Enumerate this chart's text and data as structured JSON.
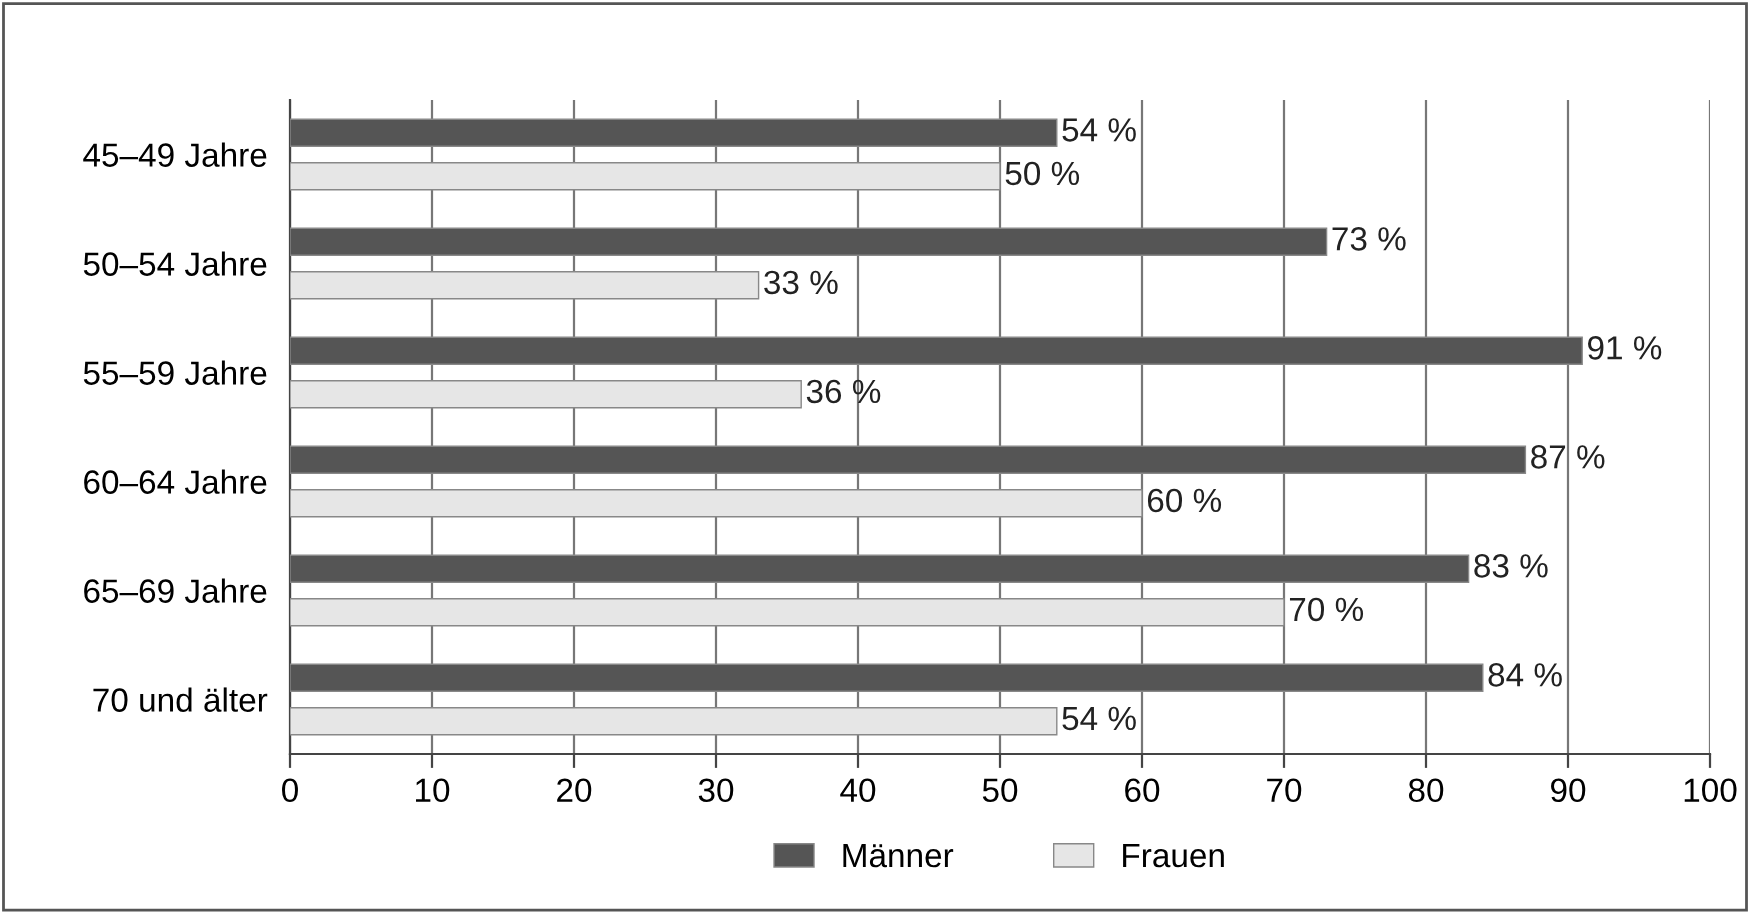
{
  "chart_data": {
    "type": "bar",
    "orientation": "horizontal",
    "categories": [
      "45–49 Jahre",
      "50–54 Jahre",
      "55–59 Jahre",
      "60–64 Jahre",
      "65–69 Jahre",
      "70 und älter"
    ],
    "series": [
      {
        "name": "Männer",
        "color": "#555555",
        "values": [
          54,
          73,
          91,
          87,
          83,
          84
        ],
        "value_labels": [
          "54 %",
          "73 %",
          "91 %",
          "87 %",
          "83 %",
          "84 %"
        ]
      },
      {
        "name": "Frauen",
        "color": "#e6e6e6",
        "values": [
          50,
          33,
          36,
          60,
          70,
          54
        ],
        "value_labels": [
          "50 %",
          "33 %",
          "36 %",
          "60 %",
          "70 %",
          "54 %"
        ]
      }
    ],
    "xlim": [
      0,
      100
    ],
    "xticks": [
      0,
      10,
      20,
      30,
      40,
      50,
      60,
      70,
      80,
      90,
      100
    ],
    "grid": "x",
    "legend": "bottom"
  }
}
